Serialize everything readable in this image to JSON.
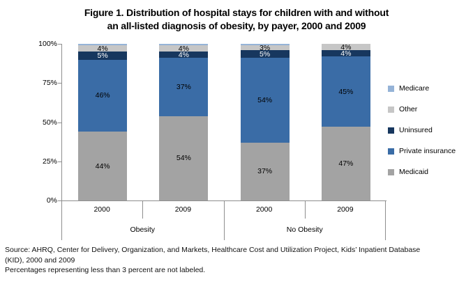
{
  "title": {
    "line1": "Figure 1. Distribution of hospital stays for children with and without",
    "line2": "an all-listed diagnosis of obesity, by payer, 2000 and 2009"
  },
  "chart_data": {
    "type": "bar",
    "stacked": true,
    "unit": "percent",
    "title": "Figure 1. Distribution of hospital stays for children with and without an all-listed diagnosis of obesity, by payer, 2000 and 2009",
    "groups": [
      "Obesity",
      "No Obesity"
    ],
    "categories": [
      "2000",
      "2009",
      "2000",
      "2009"
    ],
    "series": [
      {
        "name": "Medicaid",
        "color": "#a3a3a3",
        "label_color": "#000000",
        "values": [
          44,
          54,
          37,
          47
        ]
      },
      {
        "name": "Private insurance",
        "color": "#3a6ca6",
        "label_color": "#000000",
        "values": [
          46,
          37,
          54,
          45
        ]
      },
      {
        "name": "Uninsured",
        "color": "#17375e",
        "label_color": "#ffffff",
        "values": [
          5,
          4,
          5,
          4
        ]
      },
      {
        "name": "Other",
        "color": "#c6c6c6",
        "label_color": "#000000",
        "values": [
          4,
          4,
          3,
          4
        ]
      },
      {
        "name": "Medicare",
        "color": "#95b3d7",
        "label_color": "#000000",
        "values": [
          1,
          1,
          1,
          0
        ]
      }
    ],
    "y_ticks": [
      "100%",
      "75%",
      "50%",
      "25%",
      "0%"
    ],
    "ylim": [
      0,
      100
    ],
    "grid": false,
    "legend_position": "right",
    "legend": [
      {
        "label": "Medicare",
        "color": "#95b3d7"
      },
      {
        "label": "Other",
        "color": "#c6c6c6"
      },
      {
        "label": "Uninsured",
        "color": "#17375e"
      },
      {
        "label": "Private insurance",
        "color": "#3a6ca6"
      },
      {
        "label": "Medicaid",
        "color": "#a3a3a3"
      }
    ],
    "label_rule": "segments under 3 percent are not labeled"
  },
  "footer": {
    "source_line1": "Source: AHRQ, Center for Delivery, Organization, and Markets, Healthcare Cost and Utilization Project, Kids’ Inpatient Database",
    "source_line2": "(KID), 2000 and 2009",
    "note": "Percentages representing less than 3 percent are not labeled."
  }
}
